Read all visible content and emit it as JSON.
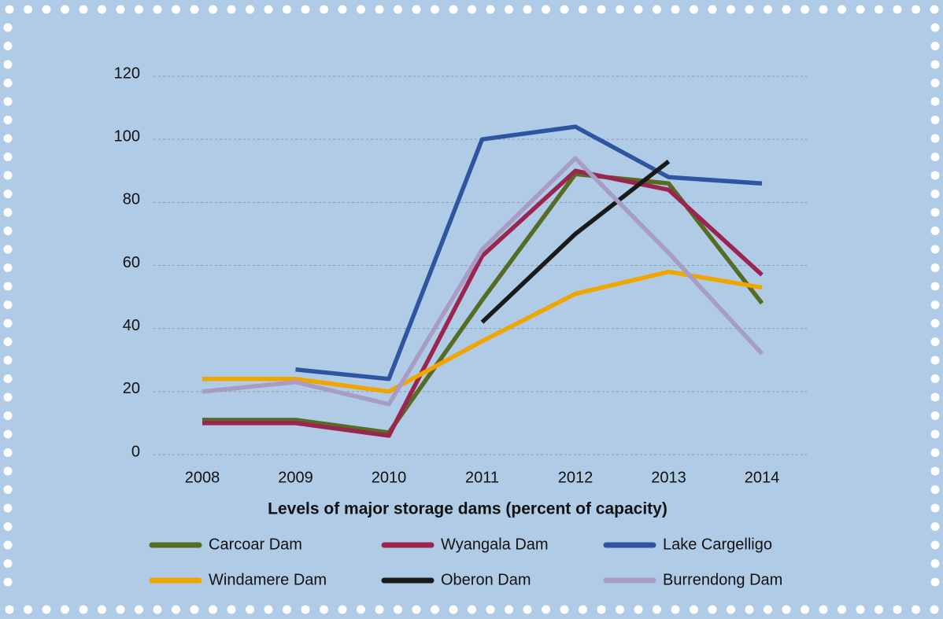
{
  "chart_data": {
    "type": "line",
    "x_axis_label": "Levels of major storage dams (percent of capacity)",
    "categories": [
      "2008",
      "2009",
      "2010",
      "2011",
      "2012",
      "2013",
      "2014"
    ],
    "ylim": [
      0,
      120
    ],
    "yticks": [
      0,
      20,
      40,
      60,
      80,
      100,
      120
    ],
    "grid": true,
    "legend": "bottom",
    "series": [
      {
        "name": "Carcoar Dam",
        "color": "#566b24",
        "values": [
          11,
          11,
          7,
          49,
          89,
          86,
          48
        ]
      },
      {
        "name": "Wyangala Dam",
        "color": "#9b2451",
        "values": [
          10,
          10,
          6,
          63,
          90,
          84,
          57
        ]
      },
      {
        "name": "Lake Cargelligo",
        "color": "#2f55a1",
        "values": [
          null,
          27,
          24,
          100,
          104,
          88,
          86
        ]
      },
      {
        "name": "Windamere Dam",
        "color": "#f0a500",
        "values": [
          24,
          24,
          20,
          36,
          51,
          58,
          53
        ]
      },
      {
        "name": "Oberon Dam",
        "color": "#1a1a1a",
        "values": [
          null,
          null,
          null,
          42,
          70,
          93,
          null
        ]
      },
      {
        "name": "Burrendong Dam",
        "color": "#a99cc2",
        "values": [
          20,
          23,
          16,
          65,
          94,
          64,
          32
        ]
      }
    ]
  }
}
